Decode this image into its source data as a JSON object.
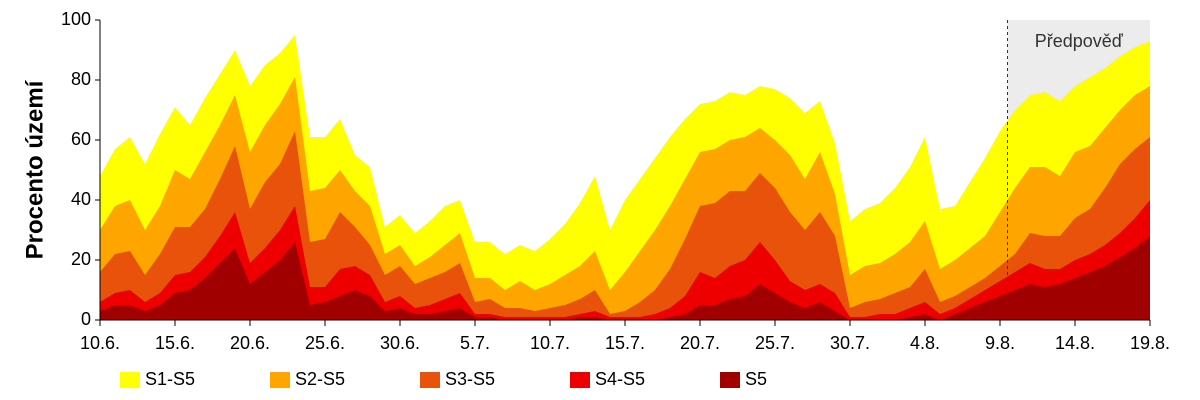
{
  "chart_data": {
    "type": "area",
    "y_label": "Procento území",
    "categories": [
      "10.6.",
      null,
      null,
      null,
      null,
      "15.6.",
      null,
      null,
      null,
      null,
      "20.6.",
      null,
      null,
      null,
      null,
      "25.6.",
      null,
      null,
      null,
      null,
      "30.6.",
      null,
      null,
      null,
      null,
      "5.7.",
      null,
      null,
      null,
      null,
      "10.7.",
      null,
      null,
      null,
      null,
      "15.7.",
      null,
      null,
      null,
      null,
      "20.7.",
      null,
      null,
      null,
      null,
      "25.7.",
      null,
      null,
      null,
      null,
      "30.7.",
      null,
      null,
      null,
      null,
      "4.8.",
      null,
      null,
      null,
      null,
      "9.8.",
      null,
      null,
      null,
      null,
      "14.8.",
      null,
      null,
      null,
      null,
      "19.8."
    ],
    "series": [
      {
        "name": "S1-S5",
        "color": "#ffff00",
        "values": [
          48,
          57,
          61,
          52,
          62,
          71,
          65,
          74,
          82,
          90,
          78,
          85,
          89,
          95,
          61,
          61,
          67,
          55,
          51,
          31,
          35,
          29,
          33,
          38,
          40,
          26,
          26,
          22,
          25,
          23,
          27,
          32,
          39,
          48,
          30,
          40,
          47,
          54,
          61,
          67,
          72,
          73,
          76,
          75,
          78,
          77,
          74,
          69,
          73,
          59,
          33,
          37,
          39,
          44,
          51,
          61,
          37,
          38,
          46,
          54,
          63,
          70,
          75,
          76,
          73,
          78,
          81,
          84,
          88,
          91,
          93
        ]
      },
      {
        "name": "S2-S5",
        "color": "#ffa500",
        "values": [
          30,
          38,
          40,
          30,
          38,
          50,
          47,
          56,
          65,
          75,
          56,
          65,
          72,
          81,
          43,
          44,
          50,
          43,
          38,
          22,
          25,
          18,
          21,
          25,
          29,
          14,
          14,
          10,
          13,
          10,
          12,
          15,
          18,
          23,
          10,
          16,
          23,
          30,
          38,
          47,
          56,
          57,
          60,
          61,
          64,
          60,
          55,
          47,
          56,
          42,
          15,
          18,
          19,
          22,
          26,
          33,
          17,
          20,
          24,
          28,
          36,
          44,
          51,
          51,
          48,
          56,
          58,
          64,
          70,
          75,
          78
        ]
      },
      {
        "name": "S3-S5",
        "color": "#e8520a",
        "values": [
          16,
          22,
          23,
          15,
          22,
          31,
          31,
          37,
          47,
          58,
          37,
          46,
          52,
          63,
          26,
          27,
          36,
          31,
          25,
          15,
          18,
          12,
          14,
          16,
          19,
          6,
          7,
          4,
          4,
          3,
          4,
          5,
          7,
          10,
          2,
          3,
          6,
          10,
          17,
          27,
          38,
          39,
          43,
          43,
          49,
          44,
          36,
          30,
          36,
          28,
          4,
          6,
          7,
          9,
          11,
          17,
          6,
          8,
          11,
          14,
          18,
          22,
          29,
          28,
          28,
          34,
          37,
          44,
          52,
          57,
          61
        ]
      },
      {
        "name": "S4-S5",
        "color": "#ee0000",
        "values": [
          6,
          9,
          10,
          6,
          9,
          15,
          16,
          21,
          28,
          36,
          19,
          24,
          30,
          38,
          11,
          11,
          17,
          18,
          15,
          6,
          8,
          4,
          5,
          7,
          9,
          2,
          2,
          1,
          1,
          1,
          1,
          1,
          2,
          3,
          1,
          1,
          1,
          2,
          4,
          8,
          16,
          14,
          18,
          20,
          26,
          20,
          13,
          10,
          12,
          9,
          1,
          1,
          2,
          2,
          4,
          6,
          2,
          4,
          7,
          10,
          13,
          16,
          19,
          17,
          17,
          20,
          22,
          25,
          29,
          34,
          40
        ]
      },
      {
        "name": "S5",
        "color": "#a00000",
        "values": [
          3,
          5,
          5,
          3,
          5,
          9,
          10,
          14,
          19,
          24,
          12,
          16,
          20,
          26,
          5,
          6,
          8,
          10,
          8,
          3,
          4,
          2,
          2,
          3,
          4,
          1,
          1,
          0,
          0,
          0,
          0,
          0,
          1,
          1,
          0,
          0,
          0,
          0,
          1,
          2,
          5,
          5,
          7,
          8,
          12,
          9,
          6,
          4,
          6,
          3,
          0,
          0,
          0,
          0,
          1,
          2,
          0,
          2,
          4,
          6,
          8,
          10,
          12,
          11,
          12,
          14,
          16,
          18,
          21,
          24,
          28
        ]
      }
    ],
    "ylim": [
      0,
      100
    ],
    "yticks": [
      0,
      20,
      40,
      60,
      80,
      100
    ],
    "forecast": {
      "label": "Předpověď",
      "from_index": 60.5
    },
    "legend": "bottom"
  }
}
